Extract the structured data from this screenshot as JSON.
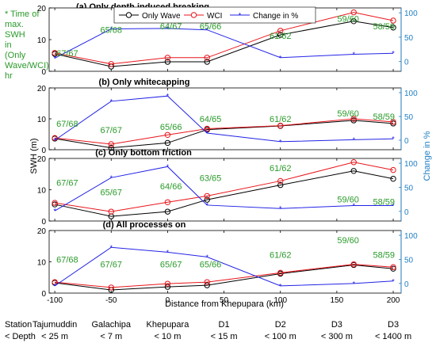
{
  "figure": {
    "side_note": [
      "* Time of",
      "max.",
      "SWH",
      "in",
      "(Only",
      "Wave/WCI)",
      "hr"
    ],
    "ylabel_left": "SWH (m)",
    "ylabel_right": "Change in %",
    "xlabel": "Distance from Khepupara (km)",
    "station_header": "Station",
    "depth_header": "< Depth",
    "stations": [
      {
        "name": "Tajumuddin",
        "depth": "< 25 m"
      },
      {
        "name": "Galachipa",
        "depth": "< 7 m"
      },
      {
        "name": "Khepupara",
        "depth": "< 10 m"
      },
      {
        "name": "D1",
        "depth": "< 15 m"
      },
      {
        "name": "D2",
        "depth": "< 100 m"
      },
      {
        "name": "D3",
        "depth": "< 300 m"
      },
      {
        "name": "D3",
        "depth": "< 1400 m"
      }
    ],
    "legend": [
      "Only Wave",
      "WCI",
      "Change in %"
    ],
    "colors": {
      "only_wave": "#000000",
      "wci": "#e8151b",
      "change": "#2323e6",
      "right_axis": "#1f7fc4",
      "annotation": "#2a9a2a",
      "side_note": "#2a9a2a"
    }
  },
  "chart_data": [
    {
      "type": "line",
      "title": "(a) Only depth induced breaking",
      "x": [
        -100,
        -50,
        0,
        35,
        100,
        165,
        200
      ],
      "x_ticks": [
        -100,
        -50,
        0,
        50,
        100,
        150,
        200
      ],
      "xlim": [
        -105,
        207
      ],
      "ylim": [
        0,
        20
      ],
      "y_ticks": [
        0,
        10,
        20
      ],
      "y2lim": [
        -20,
        110
      ],
      "y2_ticks": [
        0,
        50,
        100
      ],
      "series": [
        {
          "name": "Only Wave",
          "axis": "left",
          "values": [
            5.5,
            1.5,
            3.0,
            3.0,
            11.5,
            15.8,
            13.8
          ]
        },
        {
          "name": "WCI",
          "axis": "left",
          "values": [
            5.8,
            2.3,
            4.3,
            4.3,
            12.8,
            18.6,
            16.0
          ]
        },
        {
          "name": "Change in %",
          "axis": "right",
          "values": [
            7,
            67,
            68,
            65,
            8,
            15,
            17
          ]
        }
      ],
      "annotations": [
        {
          "text": "67/67",
          "x": -100,
          "y": 17
        },
        {
          "text": "65/68",
          "x": -50,
          "y": 65
        },
        {
          "text": "64/67",
          "x": 3,
          "y": 73
        },
        {
          "text": "65/66",
          "x": 38,
          "y": 73
        },
        {
          "text": "61/62",
          "x": 100,
          "y": 53
        },
        {
          "text": "59/60",
          "x": 160,
          "y": 88
        },
        {
          "text": "58/59",
          "x": 200,
          "y": 73
        }
      ]
    },
    {
      "type": "line",
      "title": "(b) Only whitecapping",
      "x": [
        -100,
        -50,
        0,
        35,
        100,
        165,
        200
      ],
      "x_ticks": [
        -100,
        -50,
        0,
        50,
        100,
        150,
        200
      ],
      "xlim": [
        -105,
        207
      ],
      "ylim": [
        0,
        20
      ],
      "y_ticks": [
        0,
        10,
        20
      ],
      "y2lim": [
        -20,
        110
      ],
      "y2_ticks": [
        0,
        50,
        100
      ],
      "series": [
        {
          "name": "Only Wave",
          "axis": "left",
          "values": [
            3.6,
            0.6,
            2.2,
            6.5,
            7.7,
            9.5,
            8.5
          ]
        },
        {
          "name": "WCI",
          "axis": "left",
          "values": [
            3.8,
            1.8,
            4.8,
            6.8,
            7.8,
            10.0,
            9.0
          ]
        },
        {
          "name": "Change in %",
          "axis": "right",
          "values": [
            0,
            82,
            93,
            15,
            -3,
            1,
            3
          ]
        }
      ],
      "annotations": [
        {
          "text": "67/68",
          "x": -100,
          "y": 35
        },
        {
          "text": "67/67",
          "x": -50,
          "y": 22
        },
        {
          "text": "65/66",
          "x": 3,
          "y": 28
        },
        {
          "text": "64/65",
          "x": 38,
          "y": 45
        },
        {
          "text": "61/62",
          "x": 100,
          "y": 45
        },
        {
          "text": "59/60",
          "x": 160,
          "y": 57
        },
        {
          "text": "58/59",
          "x": 200,
          "y": 50
        }
      ]
    },
    {
      "type": "line",
      "title": "(c) Only bottom friction",
      "x": [
        -100,
        -50,
        0,
        35,
        100,
        165,
        200
      ],
      "x_ticks": [
        -100,
        -50,
        0,
        50,
        100,
        150,
        200
      ],
      "xlim": [
        -105,
        207
      ],
      "ylim": [
        0,
        20
      ],
      "y_ticks": [
        0,
        10,
        20
      ],
      "y2lim": [
        -20,
        110
      ],
      "y2_ticks": [
        0,
        50,
        100
      ],
      "series": [
        {
          "name": "Only Wave",
          "axis": "left",
          "values": [
            5.3,
            1.5,
            3.0,
            6.8,
            11.5,
            16.0,
            13.5
          ]
        },
        {
          "name": "WCI",
          "axis": "left",
          "values": [
            5.8,
            3.0,
            6.0,
            8.0,
            12.8,
            18.8,
            16.3
          ]
        },
        {
          "name": "Change in %",
          "axis": "right",
          "values": [
            1,
            70,
            93,
            13,
            6,
            12,
            12
          ]
        }
      ],
      "annotations": [
        {
          "text": "67/67",
          "x": -100,
          "y": 60
        },
        {
          "text": "65/67",
          "x": -50,
          "y": 40
        },
        {
          "text": "64/66",
          "x": 3,
          "y": 52
        },
        {
          "text": "63/65",
          "x": 38,
          "y": 70
        },
        {
          "text": "61/62",
          "x": 100,
          "y": 90
        },
        {
          "text": "59/60",
          "x": 160,
          "y": 25
        },
        {
          "text": "58/59",
          "x": 200,
          "y": 20
        }
      ]
    },
    {
      "type": "line",
      "title": "(d) All processes on",
      "x": [
        -100,
        -50,
        0,
        35,
        100,
        165,
        200
      ],
      "x_ticks": [
        -100,
        -50,
        0,
        50,
        100,
        150,
        200
      ],
      "xlim": [
        -105,
        207
      ],
      "ylim": [
        0,
        20
      ],
      "y_ticks": [
        0,
        10,
        20
      ],
      "y2lim": [
        -20,
        110
      ],
      "y2_ticks": [
        0,
        50,
        100
      ],
      "series": [
        {
          "name": "Only Wave",
          "axis": "left",
          "values": [
            3.3,
            1.0,
            2.0,
            2.5,
            6.2,
            9.0,
            7.8
          ]
        },
        {
          "name": "WCI",
          "axis": "left",
          "values": [
            3.5,
            1.8,
            3.0,
            3.5,
            6.5,
            9.2,
            8.3
          ]
        },
        {
          "name": "Change in %",
          "axis": "right",
          "values": [
            -5,
            75,
            65,
            55,
            -5,
            0,
            5
          ]
        }
      ],
      "annotations": [
        {
          "text": "67/68",
          "x": -100,
          "y": 50
        },
        {
          "text": "67/67",
          "x": -50,
          "y": 40
        },
        {
          "text": "65/67",
          "x": 3,
          "y": 40
        },
        {
          "text": "65/66",
          "x": 38,
          "y": 40
        },
        {
          "text": "61/62",
          "x": 100,
          "y": 60
        },
        {
          "text": "59/60",
          "x": 160,
          "y": 90
        },
        {
          "text": "58/59",
          "x": 200,
          "y": 60
        }
      ]
    }
  ]
}
